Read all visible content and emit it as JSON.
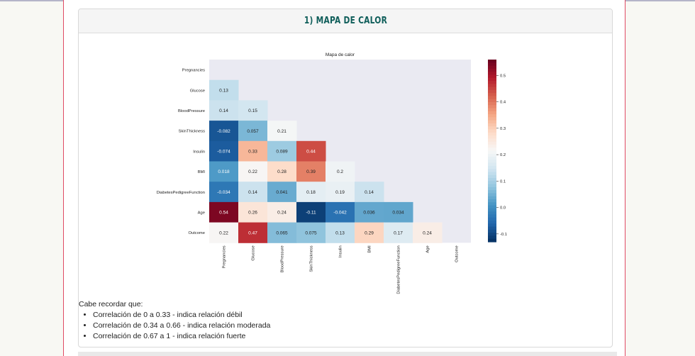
{
  "section": {
    "title": "1) MAPA DE CALOR"
  },
  "chart_data": {
    "type": "heatmap",
    "title": "Mapa de calor",
    "variables": [
      "Pregnancies",
      "Glucose",
      "BloodPressure",
      "SkinThickness",
      "Insulin",
      "BMI",
      "DiabetesPedigreeFunction",
      "Age",
      "Outcome"
    ],
    "mask": "upper triangle including diagonal",
    "values": [
      [],
      [
        0.13
      ],
      [
        0.14,
        0.15
      ],
      [
        -0.082,
        0.057,
        0.21
      ],
      [
        -0.074,
        0.33,
        0.089,
        0.44
      ],
      [
        0.018,
        0.22,
        0.28,
        0.39,
        0.2
      ],
      [
        -0.034,
        0.14,
        0.041,
        0.18,
        0.19,
        0.14
      ],
      [
        0.54,
        0.26,
        0.24,
        -0.11,
        -0.042,
        0.036,
        0.034
      ],
      [
        0.22,
        0.47,
        0.065,
        0.075,
        0.13,
        0.29,
        0.17,
        0.24
      ]
    ],
    "colormap": "RdBu_r",
    "vmin": -0.13,
    "vmax": 0.56,
    "colorbar_ticks": [
      0.5,
      0.4,
      0.3,
      0.2,
      0.1,
      0.0,
      -0.1
    ],
    "colorbar_tick_labels": [
      "0.5",
      "0.4",
      "0.3",
      "0.2",
      "0.1",
      "0.0",
      "-0.1"
    ],
    "masked_color": "#eaeaf2"
  },
  "notes": {
    "intro": "Cabe recordar que:",
    "items": [
      "Correlación de 0 a 0.33 - indica relación débil",
      "Correlación de 0.34 a 0.66 - indica relación moderada",
      "Correlación de 0.67 a 1 - indica relación fuerte"
    ]
  }
}
